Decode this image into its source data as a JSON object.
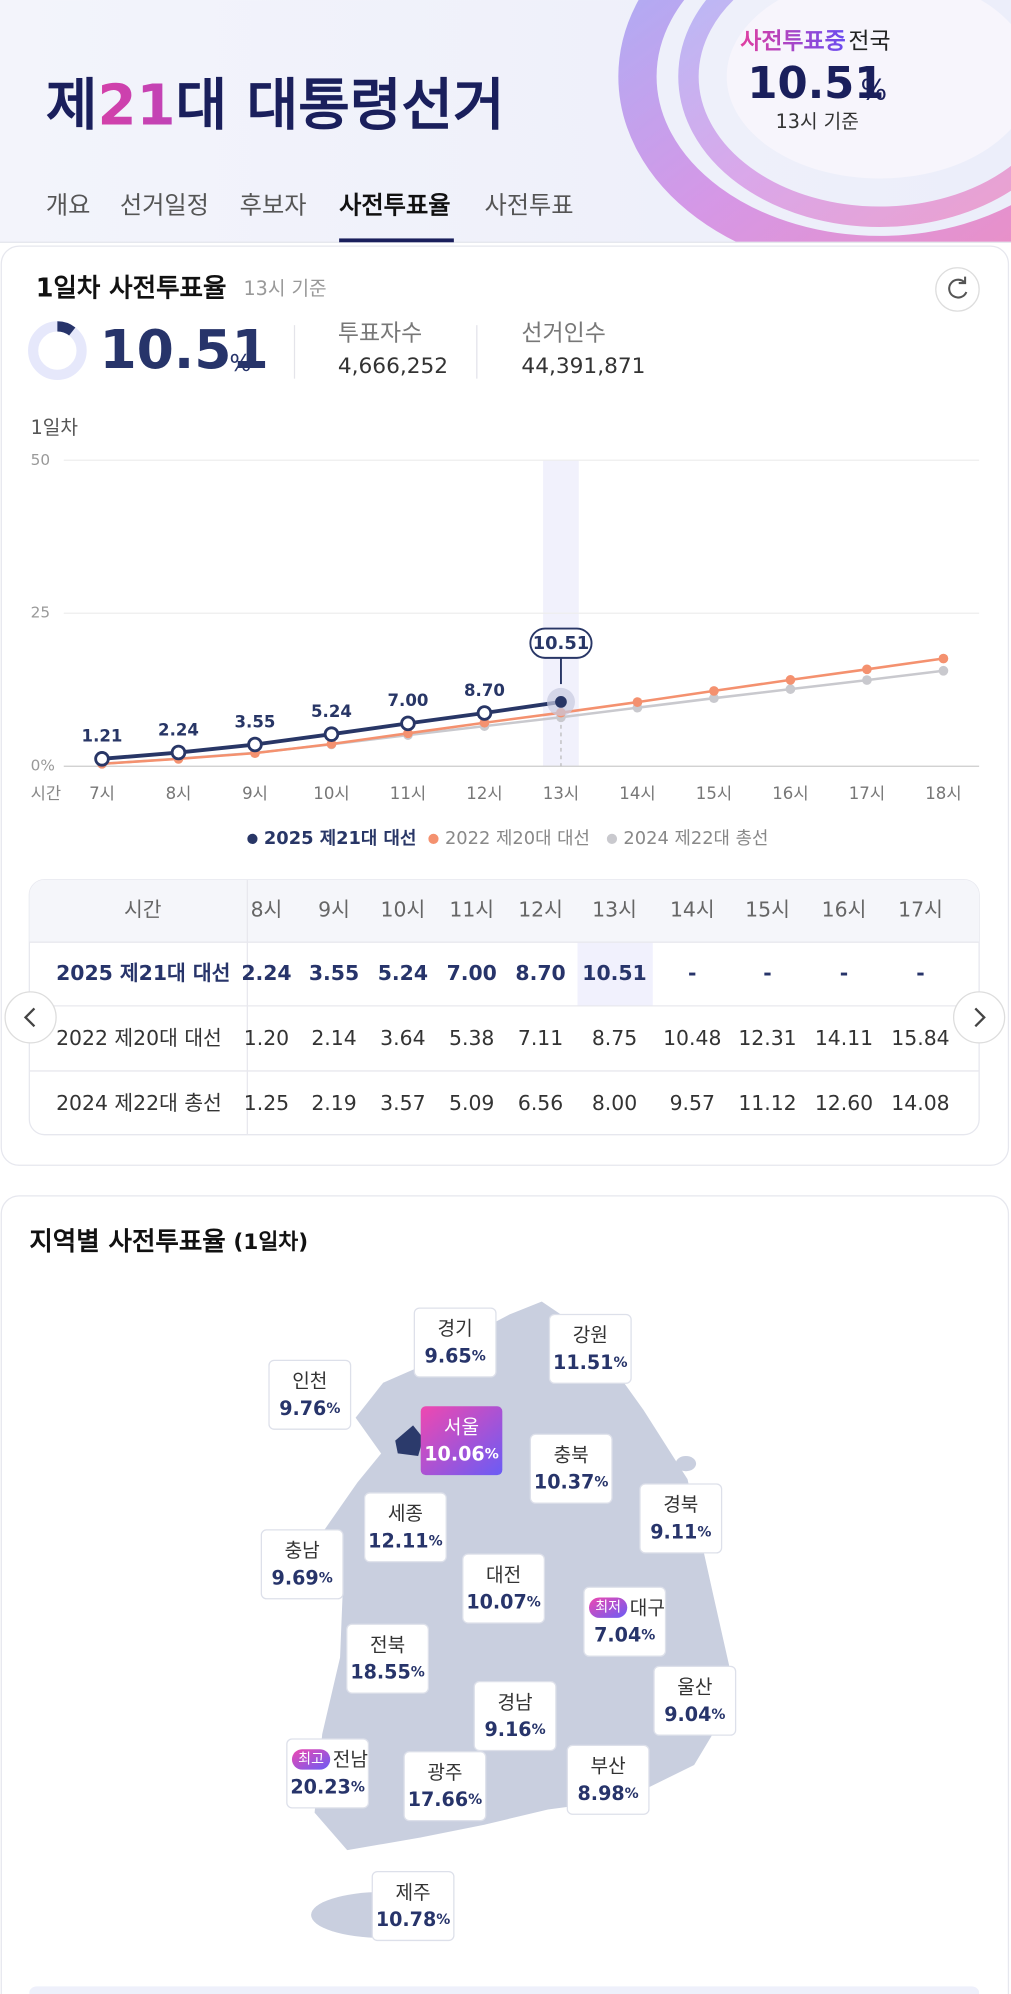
{
  "header": {
    "title": {
      "pre": "제",
      "num": "21",
      "post": "대 대통령선거"
    },
    "status": "사전투표중",
    "region": "전국",
    "rate": "10.51",
    "unit": "%",
    "basis": "13시 기준",
    "tabs": [
      "개요",
      "선거일정",
      "후보자",
      "사전투표율",
      "사전투표"
    ]
  },
  "summary": {
    "title": "1일차 사전투표율",
    "basis": "13시 기준",
    "rate": 10.51,
    "unit": "%",
    "voters_label": "투표자수",
    "voters": "4,666,252",
    "electorate_label": "선거인수",
    "electorate": "44,391,871"
  },
  "chart_data": {
    "type": "line",
    "title": "1일차",
    "x_label": "시간",
    "categories": [
      "7시",
      "8시",
      "9시",
      "10시",
      "11시",
      "12시",
      "13시",
      "14시",
      "15시",
      "16시",
      "17시",
      "18시"
    ],
    "series": [
      {
        "name": "2025 제21대 대선",
        "color": "#283666",
        "values": [
          1.21,
          2.24,
          3.55,
          5.24,
          7.0,
          8.7,
          10.51,
          null,
          null,
          null,
          null,
          null
        ],
        "value_labels": [
          "1.21",
          "2.24",
          "3.55",
          "5.24",
          "7.00",
          "8.70",
          "10.51",
          null,
          null,
          null,
          null,
          null
        ]
      },
      {
        "name": "2022 제20대 대선",
        "color": "#f4916f",
        "values": [
          0.4,
          1.2,
          2.14,
          3.64,
          5.38,
          7.11,
          8.75,
          10.48,
          12.31,
          14.11,
          15.84,
          17.6
        ]
      },
      {
        "name": "2024 제22대 총선",
        "color": "#c9c9ce",
        "values": [
          0.4,
          1.25,
          2.19,
          3.57,
          5.09,
          6.56,
          8.0,
          9.57,
          11.12,
          12.6,
          14.08,
          15.6
        ]
      }
    ],
    "ylim": [
      0,
      50
    ],
    "yticks": [
      {
        "value": 0,
        "label": "0%"
      },
      25,
      50
    ],
    "grid": true,
    "highlight_index": 6
  },
  "table": {
    "header": [
      "시간",
      "8시",
      "9시",
      "10시",
      "11시",
      "12시",
      "13시",
      "14시",
      "15시",
      "16시",
      "17시"
    ],
    "rows": [
      [
        "2025 제21대 대선",
        "2.24",
        "3.55",
        "5.24",
        "7.00",
        "8.70",
        "10.51",
        "-",
        "-",
        "-",
        "-"
      ],
      [
        "2022 제20대 대선",
        "1.20",
        "2.14",
        "3.64",
        "5.38",
        "7.11",
        "8.75",
        "10.48",
        "12.31",
        "14.11",
        "15.84"
      ],
      [
        "2024 제22대 총선",
        "1.25",
        "2.19",
        "3.57",
        "5.09",
        "6.56",
        "8.00",
        "9.57",
        "11.12",
        "12.60",
        "14.08"
      ]
    ]
  },
  "regional": {
    "title": "지역별 사전투표율",
    "subtitle": "(1일차)",
    "unit": "%",
    "regions": [
      {
        "name": "경기",
        "value": 9.65
      },
      {
        "name": "강원",
        "value": 11.51
      },
      {
        "name": "인천",
        "value": 9.76
      },
      {
        "name": "서울",
        "value": 10.06
      },
      {
        "name": "충북",
        "value": 10.37
      },
      {
        "name": "경북",
        "value": 9.11
      },
      {
        "name": "세종",
        "value": 12.11
      },
      {
        "name": "충남",
        "value": 9.69
      },
      {
        "name": "대전",
        "value": 10.07
      },
      {
        "name": "대구",
        "value": 7.04,
        "badge": "최저"
      },
      {
        "name": "전북",
        "value": 18.55
      },
      {
        "name": "울산",
        "value": 9.04
      },
      {
        "name": "경남",
        "value": 9.16
      },
      {
        "name": "전남",
        "value": 20.23,
        "badge": "최고"
      },
      {
        "name": "광주",
        "value": 17.66
      },
      {
        "name": "부산",
        "value": 8.98
      },
      {
        "name": "제주",
        "value": 10.78
      }
    ]
  }
}
